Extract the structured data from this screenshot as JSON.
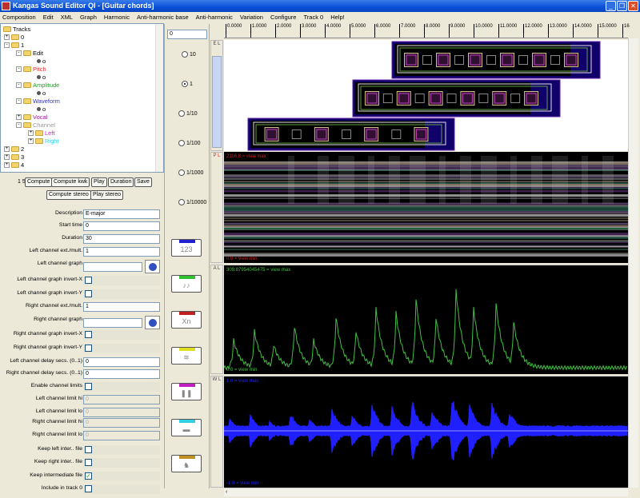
{
  "window": {
    "title": "Kangas Sound Editor QI - [Guitar chords]",
    "controls": [
      "_",
      "❐",
      "✕"
    ]
  },
  "menu": [
    "Composition",
    "Edit",
    "XML",
    "Graph",
    "Harmonic",
    "Anti-harmonic base",
    "Anti-harmonic",
    "Variation",
    "Configure",
    "Track 0",
    "Help!"
  ],
  "tree": {
    "root": "Tracks",
    "nodes": [
      {
        "label": "0",
        "depth": 1,
        "exp": "+",
        "type": "folder",
        "color": "#000000"
      },
      {
        "label": "1",
        "depth": 1,
        "exp": "-",
        "type": "folder",
        "color": "#000000"
      },
      {
        "label": "Edit",
        "depth": 2,
        "exp": "-",
        "type": "folder",
        "color": "#000000"
      },
      {
        "label": "o",
        "depth": 3,
        "type": "dot",
        "color": "#000000"
      },
      {
        "label": "Pitch",
        "depth": 2,
        "exp": "-",
        "type": "folder",
        "color": "#e03030"
      },
      {
        "label": "o",
        "depth": 3,
        "type": "dot",
        "color": "#000000"
      },
      {
        "label": "Amplitude",
        "depth": 2,
        "exp": "-",
        "type": "folder",
        "color": "#20a020"
      },
      {
        "label": "o",
        "depth": 3,
        "type": "dot",
        "color": "#000000"
      },
      {
        "label": "Waveform",
        "depth": 2,
        "exp": "-",
        "type": "folder",
        "color": "#3030c0"
      },
      {
        "label": "o",
        "depth": 3,
        "type": "dot",
        "color": "#000000"
      },
      {
        "label": "Vocal",
        "depth": 2,
        "exp": "+",
        "type": "folder",
        "color": "#a020a0"
      },
      {
        "label": "Channel",
        "depth": 2,
        "exp": "-",
        "type": "folder",
        "color": "#999999"
      },
      {
        "label": "Left",
        "depth": 3,
        "exp": "+",
        "type": "folder",
        "color": "#d020d0"
      },
      {
        "label": "Right",
        "depth": 3,
        "exp": "+",
        "type": "folder",
        "color": "#30d0e0"
      },
      {
        "label": "2",
        "depth": 1,
        "exp": "+",
        "type": "folder",
        "color": "#000000"
      },
      {
        "label": "3",
        "depth": 1,
        "exp": "+",
        "type": "folder",
        "color": "#000000"
      },
      {
        "label": "4",
        "depth": 1,
        "exp": "+",
        "type": "folder",
        "color": "#000000"
      }
    ]
  },
  "form": {
    "index": "1 5",
    "buttons": [
      "Compute",
      "Compute kwk",
      "Play",
      "Duration",
      "Save"
    ],
    "buttons2": [
      "Compute stereo",
      "Play stereo"
    ],
    "fields": [
      {
        "label": "Description",
        "type": "text",
        "value": "E-major"
      },
      {
        "label": "Start time",
        "type": "text",
        "value": "0"
      },
      {
        "label": "Duration",
        "type": "text",
        "value": "30"
      },
      {
        "label": "Left channel ext./mult.",
        "type": "text",
        "value": "1"
      },
      {
        "label": "Left channel graph",
        "type": "graph",
        "value": ""
      },
      {
        "label": "Left channel graph invert-X",
        "type": "check",
        "checked": false
      },
      {
        "label": "Left channel graph invert-Y",
        "type": "check",
        "checked": false
      },
      {
        "label": "Right channel ext./mult.",
        "type": "text",
        "value": "1"
      },
      {
        "label": "Right channel graph",
        "type": "graph",
        "value": ""
      },
      {
        "label": "Right channel graph invert-X",
        "type": "check",
        "checked": false
      },
      {
        "label": "Right channel graph invert-Y",
        "type": "check",
        "checked": false
      },
      {
        "label": "Left channel delay secs. (0..1)",
        "type": "text",
        "value": "0"
      },
      {
        "label": "Right channel delay secs. (0..1)",
        "type": "text",
        "value": "0"
      },
      {
        "label": "Enable channel limits",
        "type": "check",
        "checked": false
      },
      {
        "label": "Left channel limit hi",
        "type": "disabled",
        "value": "0"
      },
      {
        "label": "Left channel limit lo",
        "type": "disabled",
        "value": "0"
      },
      {
        "label": "Right channel limit hi",
        "type": "disabled",
        "value": "0"
      },
      {
        "label": "Right channel limit lo",
        "type": "disabled",
        "value": "0"
      },
      {
        "label": "Keep left inter.. file",
        "type": "check",
        "checked": false
      },
      {
        "label": "Keep right inter.. file",
        "type": "check",
        "checked": false
      },
      {
        "label": "Keep intermediate file",
        "type": "check",
        "checked": true
      },
      {
        "label": "Include in track 0",
        "type": "check",
        "checked": false
      }
    ]
  },
  "scale": {
    "value": "0",
    "options": [
      "10",
      "1",
      "1/10",
      "1/100",
      "1/1000",
      "1/10000"
    ],
    "selected": "1"
  },
  "tools": [
    {
      "name": "numbers",
      "glyph": "123",
      "color": "#2020d0"
    },
    {
      "name": "notes",
      "glyph": "♪♪",
      "color": "#30c030"
    },
    {
      "name": "xn",
      "glyph": "Xn",
      "color": "#c02020"
    },
    {
      "name": "wave",
      "glyph": "≋",
      "color": "#e0e020"
    },
    {
      "name": "pause",
      "glyph": "❚❚",
      "color": "#c020c0"
    },
    {
      "name": "minus",
      "glyph": "▬",
      "color": "#30d0e0"
    },
    {
      "name": "figure",
      "glyph": "♞",
      "color": "#c09020"
    }
  ],
  "side_labels": {
    "edit": "E L",
    "pitch": "P L",
    "amplitude": "A L",
    "waveform": "W L"
  },
  "ruler": [
    "0.0000",
    "1.0000",
    "2.0000",
    "3.0000",
    "4.0000",
    "5.0000",
    "6.0000",
    "7.0000",
    "8.0000",
    "9.0000",
    "10.0000",
    "11.0000",
    "12.0000",
    "13.0000",
    "14.0000",
    "15.0000",
    "16"
  ],
  "pitch": {
    "max_label": "2116.8 = view max",
    "min_label": "0.0 = view min"
  },
  "amplitude": {
    "max_label": "309.87954045475 = view max",
    "min_label": "0.0 = view min"
  },
  "waveform": {
    "max_label": "1.0 = view max",
    "min_label": "-1.0 = view min"
  },
  "colors": {
    "pitch_text": "#d02020",
    "amplitude": "#40c040",
    "waveform": "#2020ff"
  }
}
